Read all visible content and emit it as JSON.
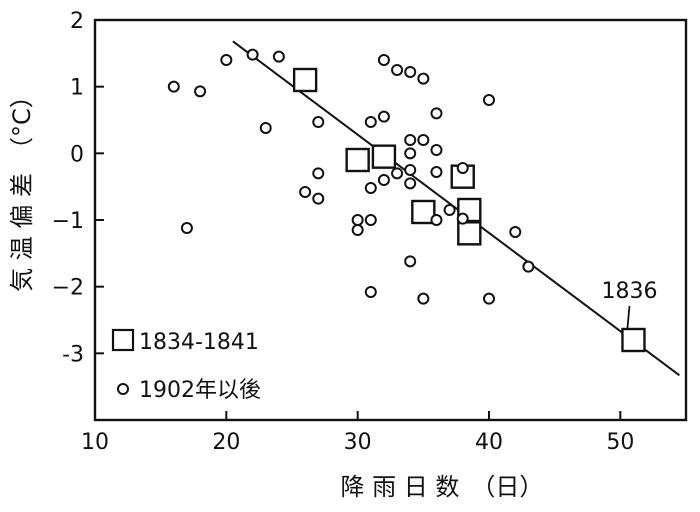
{
  "chart_data": {
    "type": "scatter",
    "xlabel": "降 雨 日 数　（日）",
    "ylabel": "気 温 偏 差　（°C）",
    "xlim": [
      10,
      55
    ],
    "ylim": [
      -4,
      2
    ],
    "x_ticks": [
      10,
      20,
      30,
      40,
      50
    ],
    "y_ticks": [
      2,
      1,
      0,
      -1,
      -2,
      -3
    ],
    "x_tick_labels": [
      "10",
      "20",
      "30",
      "40",
      "50"
    ],
    "y_tick_labels": [
      "2",
      "1",
      "0",
      "−1",
      "−2",
      "-3"
    ],
    "grid": false,
    "legend_position": "bottom-left",
    "series": [
      {
        "name": "1834-1841",
        "marker": "square",
        "points": [
          {
            "x": 26,
            "y": 1.1
          },
          {
            "x": 30,
            "y": -0.1
          },
          {
            "x": 32,
            "y": -0.05
          },
          {
            "x": 35,
            "y": -0.88
          },
          {
            "x": 38,
            "y": -0.35
          },
          {
            "x": 38.5,
            "y": -0.85
          },
          {
            "x": 38.5,
            "y": -1.2
          },
          {
            "x": 51,
            "y": -2.8
          }
        ]
      },
      {
        "name": "1902年以後",
        "marker": "circle",
        "points": [
          {
            "x": 16,
            "y": 1.0
          },
          {
            "x": 18,
            "y": 0.93
          },
          {
            "x": 20,
            "y": 1.4
          },
          {
            "x": 22,
            "y": 1.48
          },
          {
            "x": 24,
            "y": 1.45
          },
          {
            "x": 17,
            "y": -1.12
          },
          {
            "x": 23,
            "y": 0.38
          },
          {
            "x": 26,
            "y": -0.58
          },
          {
            "x": 27,
            "y": 0.47
          },
          {
            "x": 27,
            "y": -0.3
          },
          {
            "x": 27,
            "y": -0.68
          },
          {
            "x": 30,
            "y": -1.0
          },
          {
            "x": 30,
            "y": -1.15
          },
          {
            "x": 31,
            "y": 0.47
          },
          {
            "x": 31,
            "y": -0.52
          },
          {
            "x": 31,
            "y": -1.0
          },
          {
            "x": 31,
            "y": -2.08
          },
          {
            "x": 32,
            "y": 1.4
          },
          {
            "x": 32,
            "y": 0.55
          },
          {
            "x": 32,
            "y": -0.4
          },
          {
            "x": 33,
            "y": 1.25
          },
          {
            "x": 33,
            "y": -0.3
          },
          {
            "x": 34,
            "y": 1.22
          },
          {
            "x": 34,
            "y": 0.2
          },
          {
            "x": 34,
            "y": 0.0
          },
          {
            "x": 34,
            "y": -0.25
          },
          {
            "x": 34,
            "y": -0.45
          },
          {
            "x": 34,
            "y": -1.62
          },
          {
            "x": 35,
            "y": 1.12
          },
          {
            "x": 35,
            "y": 0.2
          },
          {
            "x": 35,
            "y": -2.18
          },
          {
            "x": 36,
            "y": 0.6
          },
          {
            "x": 36,
            "y": 0.05
          },
          {
            "x": 36,
            "y": -0.28
          },
          {
            "x": 36,
            "y": -1.0
          },
          {
            "x": 37,
            "y": -0.85
          },
          {
            "x": 38,
            "y": -0.22
          },
          {
            "x": 38,
            "y": -0.98
          },
          {
            "x": 40,
            "y": 0.8
          },
          {
            "x": 40,
            "y": -2.18
          },
          {
            "x": 42,
            "y": -1.18
          },
          {
            "x": 43,
            "y": -1.7
          }
        ]
      }
    ],
    "trend_line": {
      "x1": 20.5,
      "y1": 1.68,
      "x2": 54.5,
      "y2": -3.33
    },
    "annotations": [
      {
        "text": "1836",
        "x": 51,
        "y": -2.8
      }
    ]
  }
}
